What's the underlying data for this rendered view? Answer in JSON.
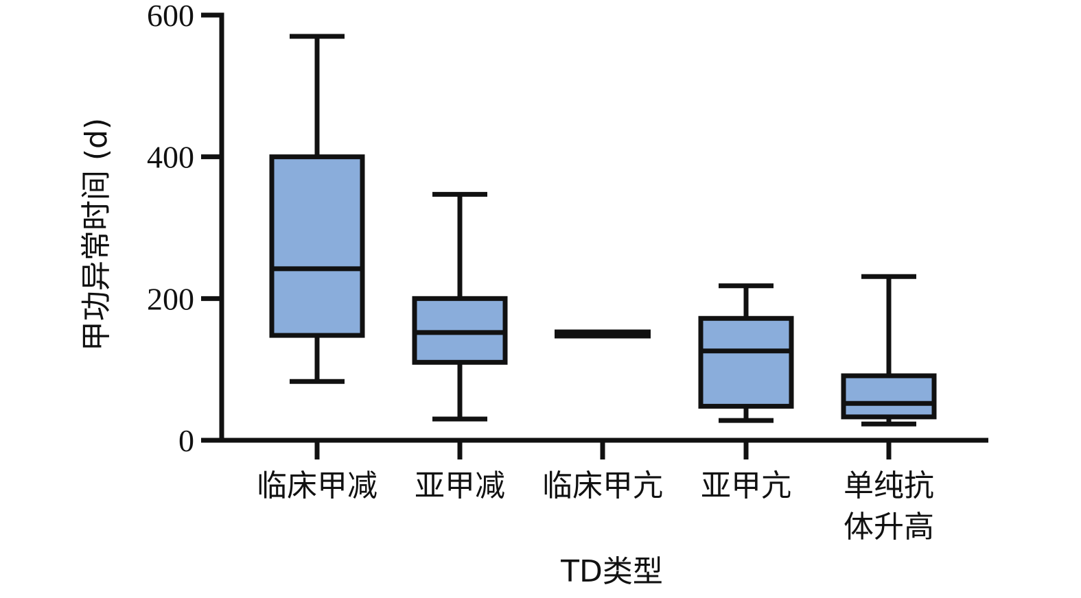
{
  "chart_data": {
    "type": "box",
    "title": "",
    "xlabel": "TD类型",
    "ylabel": "甲功异常时间 (d)",
    "ylim": [
      0,
      600
    ],
    "yticks": [
      0,
      200,
      400,
      600
    ],
    "ytick_labels": [
      "0",
      "200",
      "400",
      "600"
    ],
    "grid": false,
    "legend": "none",
    "box_color": "#8aaddb",
    "line_color": "#111111",
    "categories": [
      {
        "label_lines": [
          "临床甲减"
        ]
      },
      {
        "label_lines": [
          "亚甲减"
        ]
      },
      {
        "label_lines": [
          "临床甲亢"
        ]
      },
      {
        "label_lines": [
          "亚甲亢"
        ]
      },
      {
        "label_lines": [
          "单纯抗",
          "体升高"
        ]
      }
    ],
    "boxes": [
      {
        "min": 83,
        "q1": 148,
        "median": 242,
        "q3": 400,
        "max": 570
      },
      {
        "min": 30,
        "q1": 110,
        "median": 152,
        "q3": 200,
        "max": 347
      },
      {
        "min": 150,
        "q1": 150,
        "median": 150,
        "q3": 150,
        "max": 150
      },
      {
        "min": 28,
        "q1": 48,
        "median": 126,
        "q3": 172,
        "max": 218
      },
      {
        "min": 23,
        "q1": 33,
        "median": 52,
        "q3": 91,
        "max": 231
      }
    ]
  }
}
